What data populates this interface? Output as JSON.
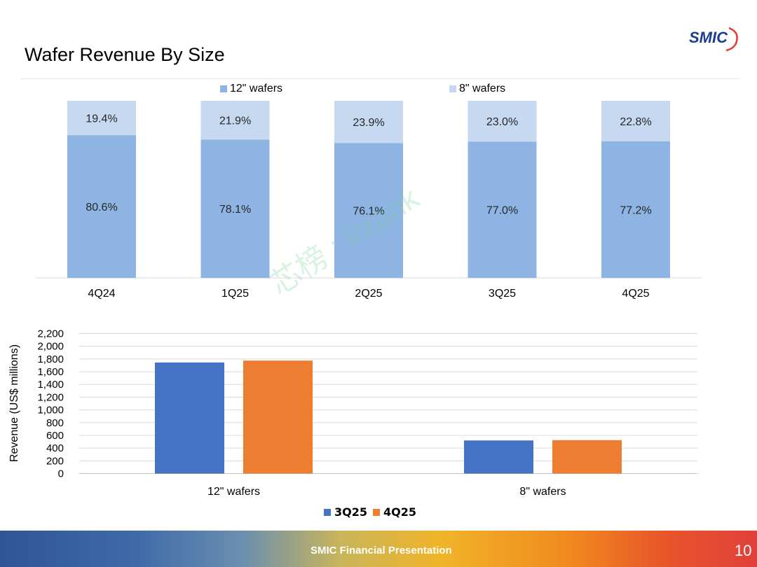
{
  "slide": {
    "title": "Wafer Revenue By Size",
    "logo_text": "SMIC",
    "footer_text": "SMIC Financial Presentation",
    "page_number": "10",
    "watermark_text": "芯榜 : icrank"
  },
  "colors": {
    "wafer12": "#8eb4e3",
    "wafer8": "#c6d9f1",
    "q3": "#4472c4",
    "q4": "#ed7d31",
    "logo": "#1b3f8f"
  },
  "legend_top": [
    {
      "label": "12\" wafers",
      "color": "#8eb4e3"
    },
    {
      "label": "8\" wafers",
      "color": "#c6d9f1"
    }
  ],
  "legend_bottom": [
    {
      "label": "3Q25",
      "color": "#4472c4"
    },
    {
      "label": "4Q25",
      "color": "#ed7d31"
    }
  ],
  "chart_data": [
    {
      "type": "bar",
      "stacked": true,
      "percent": true,
      "categories": [
        "4Q24",
        "1Q25",
        "2Q25",
        "3Q25",
        "4Q25"
      ],
      "series": [
        {
          "name": "12\" wafers",
          "values": [
            80.6,
            78.1,
            76.1,
            77.0,
            77.2
          ],
          "labels": [
            "80.6%",
            "78.1%",
            "76.1%",
            "77.0%",
            "77.2%"
          ]
        },
        {
          "name": "8\" wafers",
          "values": [
            19.4,
            21.9,
            23.9,
            23.0,
            22.8
          ],
          "labels": [
            "19.4%",
            "21.9%",
            "23.9%",
            "23.0%",
            "22.8%"
          ]
        }
      ],
      "ylim": [
        0,
        100
      ],
      "legend": "top"
    },
    {
      "type": "bar",
      "categories": [
        "12\" wafers",
        "8\" wafers"
      ],
      "series": [
        {
          "name": "3Q25",
          "values": [
            1745,
            520
          ]
        },
        {
          "name": "4Q25",
          "values": [
            1775,
            525
          ]
        }
      ],
      "ylabel": "Revenue (US$  millions)",
      "ylim": [
        0,
        2200
      ],
      "yticks": [
        "0",
        "200",
        "400",
        "600",
        "800",
        "1,000",
        "1,200",
        "1,400",
        "1,600",
        "1,800",
        "2,000",
        "2,200"
      ],
      "grid": true,
      "legend": "bottom"
    }
  ]
}
